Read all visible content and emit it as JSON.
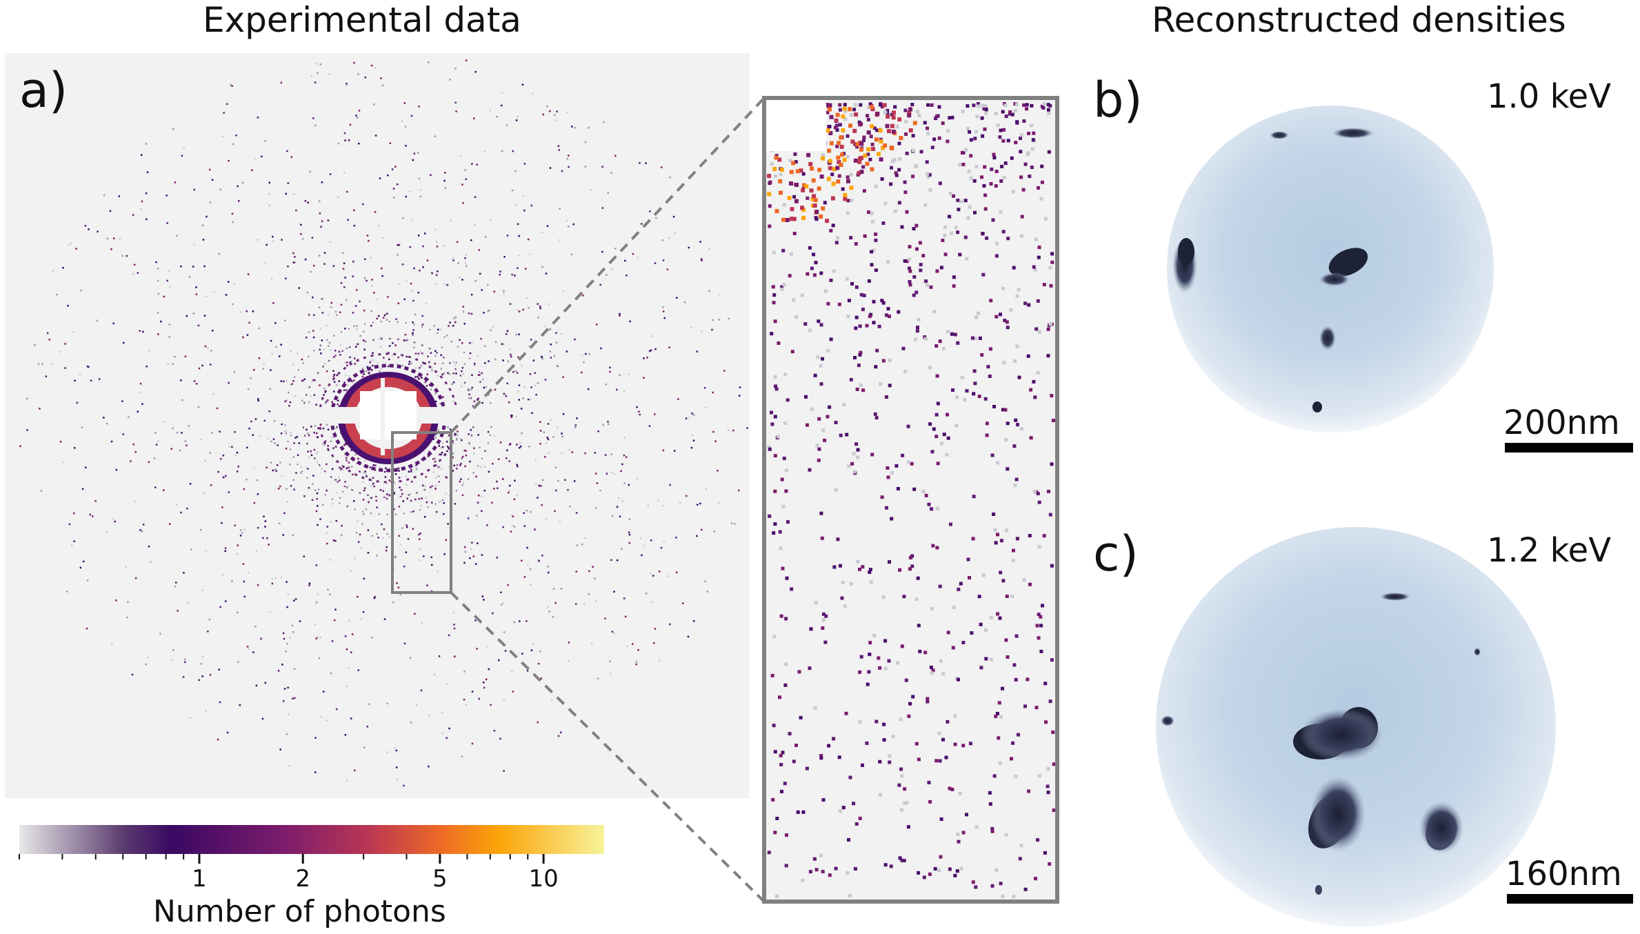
{
  "titles": {
    "left": "Experimental data",
    "right": "Reconstructed densities"
  },
  "panels": {
    "a": {
      "label": "a)"
    },
    "b": {
      "label": "b)",
      "energy": "1.0 keV",
      "scale": "200nm"
    },
    "c": {
      "label": "c)",
      "energy": "1.2 keV",
      "scale": "160nm"
    }
  },
  "colorbar": {
    "caption": "Number of photons",
    "tick_labels": [
      "1",
      "2",
      "5",
      "10"
    ],
    "tick_values": [
      1,
      2,
      5,
      10
    ],
    "range": [
      0.3,
      15
    ],
    "colormap": "inferno",
    "colors": [
      "#e8e8e8",
      "#3a0963",
      "#7b1c6c",
      "#bc3754",
      "#ed6925",
      "#fca50a",
      "#f6f39a"
    ]
  },
  "styles": {
    "background_gray": "#f2f2f2",
    "frame_gray": "#808080",
    "sphere_blue": "#b8cde2"
  }
}
